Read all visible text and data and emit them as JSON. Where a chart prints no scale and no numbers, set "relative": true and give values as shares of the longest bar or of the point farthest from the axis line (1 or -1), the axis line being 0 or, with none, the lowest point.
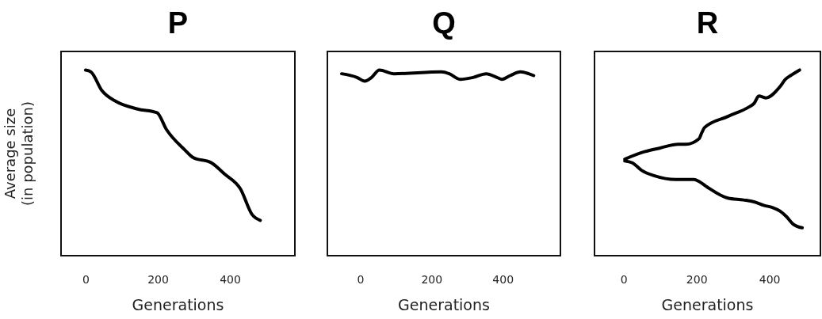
{
  "chart_data": [
    {
      "type": "line",
      "title": "P",
      "xlabel": "Generations",
      "ylabel": "Average size\n(in population)",
      "relative": true,
      "xlim": [
        -68,
        580
      ],
      "xticks": [
        0,
        200,
        400
      ],
      "line_style": "solid",
      "marker": "none",
      "series": [
        {
          "color": "#000000",
          "x": [
            0,
            15,
            45,
            85,
            144,
            198,
            224,
            275,
            297,
            349,
            385,
            429,
            462,
            484
          ],
          "values": [
            1.0,
            0.99,
            0.89,
            0.83,
            0.79,
            0.77,
            0.68,
            0.57,
            0.53,
            0.5,
            0.44,
            0.36,
            0.22,
            0.19
          ]
        }
      ]
    },
    {
      "type": "line",
      "title": "Q",
      "xlabel": "Generations",
      "relative": true,
      "xlim": [
        -92,
        562
      ],
      "xticks": [
        0,
        200,
        400
      ],
      "line_style": "solid",
      "marker": "none",
      "series": [
        {
          "color": "#000000",
          "x": [
            -52,
            -9,
            13,
            32,
            54,
            95,
            228,
            250,
            280,
            317,
            354,
            384,
            398,
            421,
            450,
            473,
            487
          ],
          "values": [
            0.98,
            0.96,
            0.94,
            0.96,
            1.0,
            0.98,
            0.99,
            0.98,
            0.95,
            0.96,
            0.98,
            0.96,
            0.95,
            0.97,
            0.99,
            0.98,
            0.97
          ]
        }
      ]
    },
    {
      "type": "line",
      "title": "R",
      "xlabel": "Generations",
      "relative": true,
      "xlim": [
        -80,
        540
      ],
      "xticks": [
        0,
        200,
        400
      ],
      "line_style": "solid",
      "marker": "none",
      "series": [
        {
          "color": "#000000",
          "x": [
            3,
            57,
            100,
            150,
            171,
            207,
            214,
            222,
            286,
            343,
            358,
            371,
            390,
            429,
            444,
            458,
            483
          ],
          "values": [
            0.52,
            0.56,
            0.58,
            0.6,
            0.6,
            0.63,
            0.66,
            0.69,
            0.75,
            0.8,
            0.82,
            0.86,
            0.85,
            0.91,
            0.95,
            0.97,
            1.0
          ]
        },
        {
          "color": "#000000",
          "x": [
            3,
            24,
            49,
            85,
            143,
            193,
            207,
            229,
            286,
            329,
            358,
            386,
            408,
            429,
            447,
            465,
            490
          ],
          "values": [
            0.51,
            0.5,
            0.46,
            0.43,
            0.41,
            0.41,
            0.4,
            0.37,
            0.31,
            0.3,
            0.29,
            0.27,
            0.26,
            0.24,
            0.21,
            0.17,
            0.15
          ]
        }
      ]
    }
  ]
}
